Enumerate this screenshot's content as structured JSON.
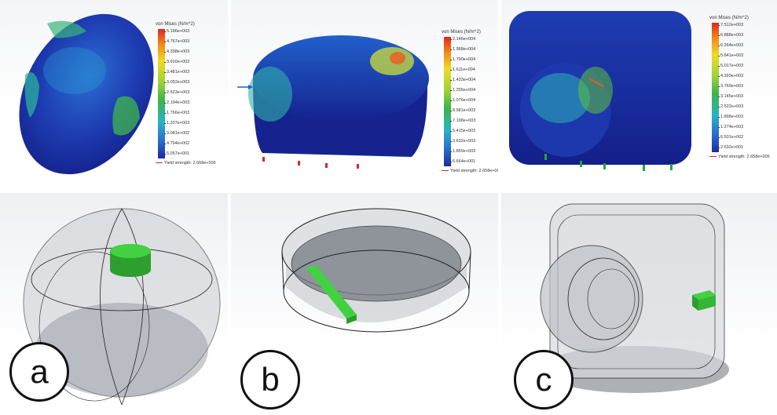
{
  "legend_title": "von Mises (N/m^2)",
  "yield_label": "Yield strength: 2.658e+005",
  "legends": [
    [
      "5.196e+003",
      "4.767e+003",
      "4.338e+003",
      "3.910e+003",
      "3.481e+003",
      "3.052e+003",
      "2.623e+003",
      "2.194e+003",
      "1.766e+003",
      "1.337e+003",
      "9.081e+002",
      "4.794e+002",
      "5.057e+001"
    ],
    [
      "2.146e+004",
      "1.968e+004",
      "1.790e+004",
      "1.611e+004",
      "1.433e+004",
      "1.255e+004",
      "1.076e+004",
      "8.981e+003",
      "7.198e+003",
      "5.415e+003",
      "3.632e+003",
      "1.850e+003",
      "6.664e+001"
    ],
    [
      "7.512e+003",
      "6.888e+003",
      "6.264e+003",
      "5.641e+003",
      "5.017e+003",
      "4.393e+003",
      "3.769e+003",
      "3.145e+003",
      "2.522e+003",
      "1.898e+003",
      "1.274e+003",
      "6.501e+002",
      "2.632e+001"
    ]
  ],
  "labels": {
    "a": "a",
    "b": "b",
    "c": "c"
  },
  "colors": {
    "part_blue": "#1b2fa8",
    "sensor_green": "#3cc23c",
    "badge_border": "#111111"
  }
}
